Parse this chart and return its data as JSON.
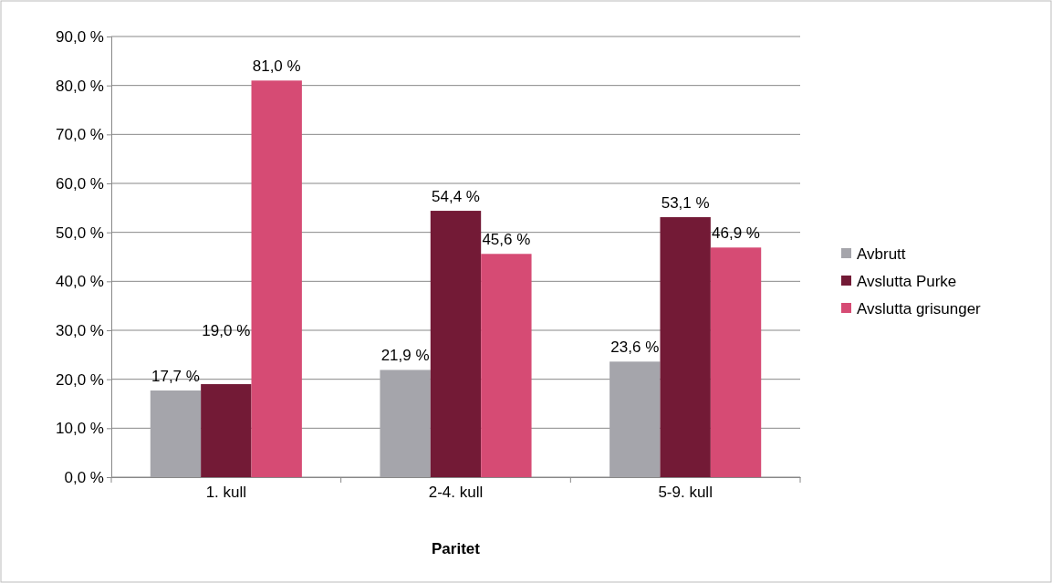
{
  "chart_data": {
    "type": "bar",
    "xlabel": "Paritet",
    "categories": [
      "1. kull",
      "2-4. kull",
      "5-9. kull"
    ],
    "series": [
      {
        "name": "Avbrutt",
        "color": "#a5a5ab",
        "values": [
          17.7,
          21.9,
          23.6
        ],
        "value_labels": [
          "17,7 %",
          "21,9 %",
          "23,6 %"
        ]
      },
      {
        "name": "Avslutta Purke",
        "color": "#731a36",
        "values": [
          19.0,
          54.4,
          53.1
        ],
        "value_labels": [
          "19,0 %",
          "54,4 %",
          "53,1 %"
        ]
      },
      {
        "name": "Avslutta grisunger",
        "color": "#d64b74",
        "values": [
          81.0,
          45.6,
          46.9
        ],
        "value_labels": [
          "81,0 %",
          "45,6 %",
          "46,9 %"
        ]
      }
    ],
    "ylim": [
      0,
      90
    ],
    "yticks": [
      {
        "value": 0,
        "label": "0,0 %"
      },
      {
        "value": 10,
        "label": "10,0 %"
      },
      {
        "value": 20,
        "label": "20,0 %"
      },
      {
        "value": 30,
        "label": "30,0 %"
      },
      {
        "value": 40,
        "label": "40,0 %"
      },
      {
        "value": 50,
        "label": "50,0 %"
      },
      {
        "value": 60,
        "label": "60,0 %"
      },
      {
        "value": 70,
        "label": "70,0 %"
      },
      {
        "value": 80,
        "label": "80,0 %"
      },
      {
        "value": 90,
        "label": "90,0 %"
      }
    ],
    "grid": "y",
    "legend": "right"
  }
}
